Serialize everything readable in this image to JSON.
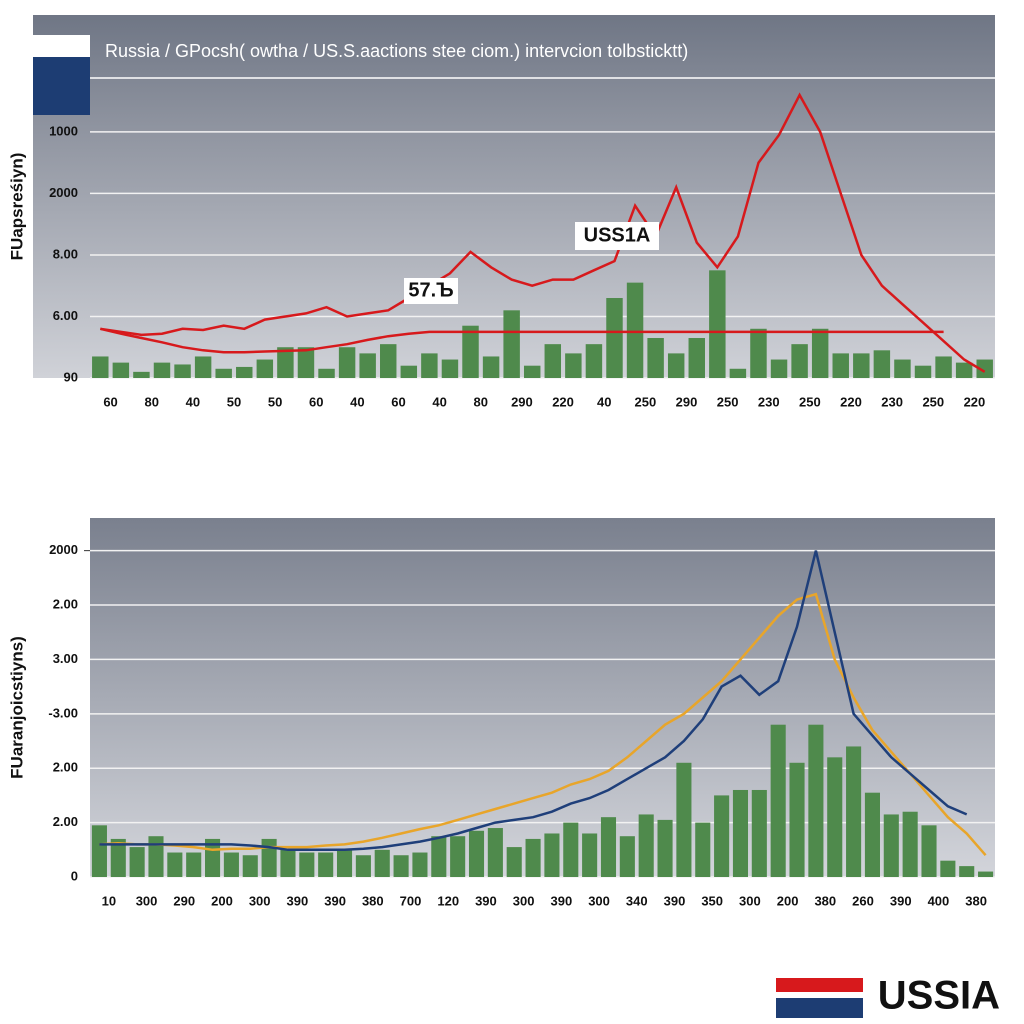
{
  "chart_data": [
    {
      "type": "bar",
      "title": "Russia / GPocsh( owtha / US.S.aactions stee ciom.) intervcion tolbsticktt)",
      "y_label": "FUapsreśiyn)",
      "annotations": [
        "USS1A",
        "57.Ъ"
      ],
      "categories": [
        "60",
        null,
        "80",
        null,
        "40",
        null,
        "50",
        null,
        "50",
        null,
        "60",
        null,
        "40",
        null,
        "60",
        null,
        "40",
        null,
        "80",
        null,
        "290",
        null,
        "220",
        null,
        "40",
        null,
        "250",
        null,
        "290",
        null,
        "250",
        null,
        "230",
        null,
        "250",
        null,
        "220",
        null,
        "230",
        null,
        "250",
        null,
        "220",
        null
      ],
      "ylim": [
        0,
        5.9
      ],
      "yticks": [
        {
          "value": 0,
          "label": "90"
        },
        {
          "value": 1,
          "label": "6.00"
        },
        {
          "value": 2,
          "label": "8.00"
        },
        {
          "value": 3,
          "label": "2000"
        },
        {
          "value": 4,
          "label": "1000"
        }
      ],
      "grid": true,
      "series": [
        {
          "type": "bar",
          "color": "#4f8a4c",
          "values": [
            0.35,
            0.25,
            0.1,
            0.25,
            0.22,
            0.35,
            0.15,
            0.18,
            0.3,
            0.5,
            0.5,
            0.15,
            0.5,
            0.4,
            0.55,
            0.2,
            0.4,
            0.3,
            0.85,
            0.35,
            1.1,
            0.2,
            0.55,
            0.4,
            0.55,
            1.3,
            1.55,
            0.65,
            0.4,
            0.65,
            1.75,
            0.15,
            0.8,
            0.3,
            0.55,
            0.8,
            0.4,
            0.4,
            0.45,
            0.3,
            0.2,
            0.35,
            0.25,
            0.3
          ]
        },
        {
          "type": "line",
          "color": "#d7191c",
          "values": [
            0.8,
            0.75,
            0.7,
            0.72,
            0.8,
            0.78,
            0.85,
            0.8,
            0.95,
            1.0,
            1.05,
            1.15,
            1.0,
            1.05,
            1.1,
            1.3,
            1.5,
            1.7,
            2.05,
            1.8,
            1.6,
            1.5,
            1.6,
            1.6,
            1.75,
            1.9,
            2.8,
            2.3,
            3.1,
            2.2,
            1.8,
            2.3,
            3.5,
            3.95,
            4.6,
            4.0,
            3.0,
            2.0,
            1.5,
            1.2,
            0.9,
            0.6,
            0.3,
            0.1
          ]
        },
        {
          "type": "line",
          "color": "#d7191c",
          "values": [
            0.8,
            0.72,
            0.65,
            0.58,
            0.5,
            0.45,
            0.42,
            0.42,
            0.43,
            0.44,
            0.45,
            0.5,
            0.55,
            0.62,
            0.68,
            0.72,
            0.75,
            0.75,
            0.75,
            0.75,
            0.75,
            0.75,
            0.75,
            0.75,
            0.75,
            0.75,
            0.75,
            0.75,
            0.75,
            0.75,
            0.75,
            0.75,
            0.75,
            0.75,
            0.75,
            0.75,
            0.75,
            0.75,
            0.75,
            0.75,
            0.75,
            0.75,
            null,
            null
          ]
        }
      ]
    },
    {
      "type": "bar",
      "y_label": "FUaranjoicstiyns)",
      "categories": [
        "10",
        null,
        "300",
        null,
        "290",
        null,
        "200",
        null,
        "300",
        null,
        "390",
        null,
        "390",
        null,
        "380",
        null,
        "700",
        null,
        "120",
        null,
        "390",
        null,
        "300",
        null,
        "390",
        null,
        "300",
        null,
        "340",
        null,
        "390",
        null,
        "350",
        null,
        "300",
        null,
        "200",
        null,
        "380",
        null,
        "260",
        null,
        "390",
        null,
        "400",
        null,
        "380",
        null
      ],
      "ylim": [
        0,
        6.6
      ],
      "yticks": [
        0,
        {
          "value": 1,
          "label": "2.00"
        },
        {
          "value": 2,
          "label": "2.00"
        },
        {
          "value": 3,
          "label": "-3.00"
        },
        {
          "value": 4,
          "label": "3.00"
        },
        {
          "value": 5,
          "label": "2.00"
        },
        6
      ],
      "ytick_top_label": "2000",
      "grid": true,
      "series": [
        {
          "type": "bar",
          "color": "#4f8a4c",
          "values": [
            0.95,
            0.7,
            0.55,
            0.75,
            0.45,
            0.45,
            0.7,
            0.45,
            0.4,
            0.7,
            0.5,
            0.45,
            0.45,
            0.5,
            0.4,
            0.5,
            0.4,
            0.45,
            0.75,
            0.75,
            0.85,
            0.9,
            0.55,
            0.7,
            0.8,
            1.0,
            0.8,
            1.1,
            0.75,
            1.15,
            1.05,
            2.1,
            1.0,
            1.5,
            1.6,
            1.6,
            2.8,
            2.1,
            2.8,
            2.2,
            2.4,
            1.55,
            1.15,
            1.2,
            0.95,
            0.3,
            0.2,
            0.1
          ]
        },
        {
          "type": "line",
          "color": "#e8a52a",
          "values": [
            0.6,
            0.62,
            0.6,
            0.6,
            0.58,
            0.55,
            0.5,
            0.52,
            0.52,
            0.55,
            0.55,
            0.55,
            0.58,
            0.6,
            0.65,
            0.72,
            0.8,
            0.88,
            0.95,
            1.05,
            1.15,
            1.25,
            1.35,
            1.45,
            1.55,
            1.7,
            1.8,
            1.95,
            2.2,
            2.5,
            2.8,
            3.0,
            3.3,
            3.6,
            4.0,
            4.4,
            4.8,
            5.1,
            5.2,
            4.0,
            3.3,
            2.7,
            2.3,
            1.9,
            1.5,
            1.1,
            0.8,
            0.4
          ]
        },
        {
          "type": "line",
          "color": "#1f3f7a",
          "values": [
            0.6,
            0.6,
            0.6,
            0.6,
            0.6,
            0.6,
            0.6,
            0.6,
            0.58,
            0.55,
            0.5,
            0.5,
            0.5,
            0.5,
            0.52,
            0.55,
            0.6,
            0.65,
            0.72,
            0.8,
            0.9,
            1.0,
            1.05,
            1.1,
            1.2,
            1.35,
            1.45,
            1.6,
            1.8,
            2.0,
            2.2,
            2.5,
            2.9,
            3.5,
            3.7,
            3.35,
            3.6,
            4.6,
            6.0,
            4.5,
            3.0,
            2.6,
            2.2,
            1.9,
            1.6,
            1.3,
            1.15,
            null
          ]
        }
      ]
    }
  ],
  "footer": "USSIA"
}
